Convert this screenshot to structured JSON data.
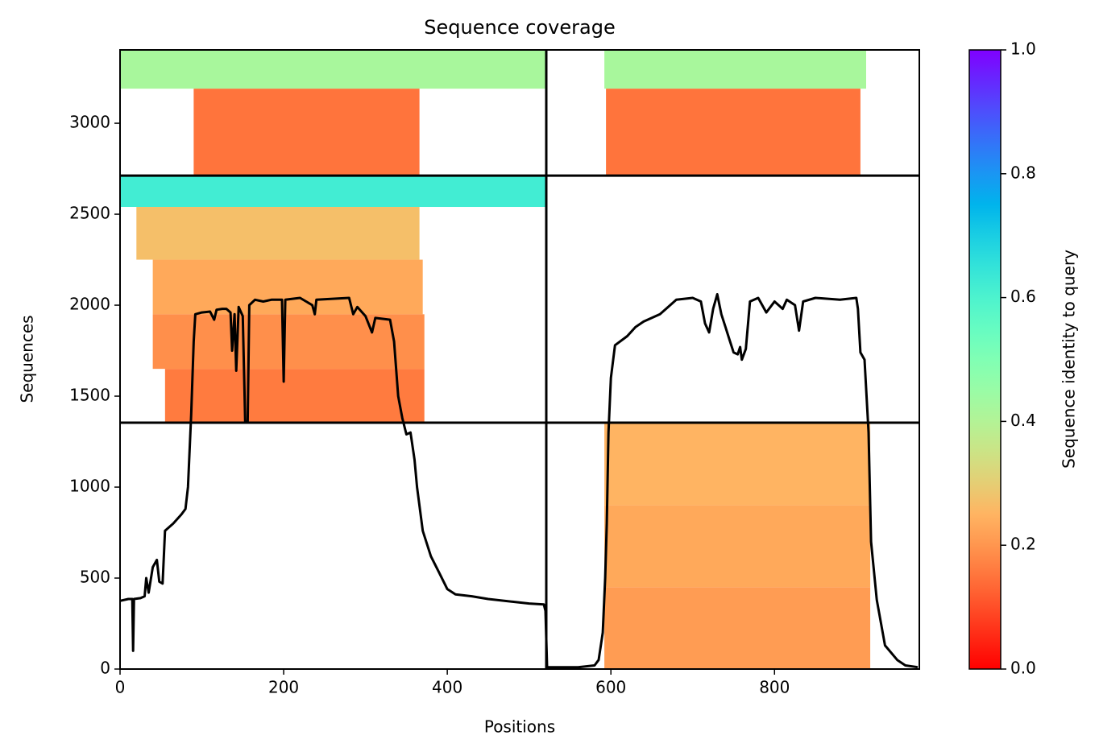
{
  "chart_data": {
    "type": "msa_coverage",
    "title": "Sequence coverage",
    "x_label": "Positions",
    "y_label": "Sequences",
    "xlim": [
      0,
      977
    ],
    "ylim": [
      0,
      3403
    ],
    "xticks": [
      0,
      200,
      400,
      600,
      800
    ],
    "yticks": [
      0,
      500,
      1000,
      1500,
      2000,
      2500,
      3000
    ],
    "colormap": "rainbow_r",
    "colorbar": {
      "label": "Sequence identity to query",
      "clim": [
        0,
        1
      ],
      "ticks": [
        {
          "value": 0,
          "label": "0.0"
        },
        {
          "value": 0.2,
          "label": "0.2"
        },
        {
          "value": 0.4,
          "label": "0.4"
        },
        {
          "value": 0.6,
          "label": "0.6"
        },
        {
          "value": 0.8,
          "label": "0.8"
        },
        {
          "value": 1,
          "label": "1.0"
        }
      ]
    },
    "chain_breaks_x": [
      521
    ],
    "segment_breaks_y": [
      1354,
      2712
    ],
    "blocks": [
      {
        "x0": 0,
        "x1": 521,
        "y0": 3190,
        "y1": 3403,
        "identity": 0.42
      },
      {
        "x0": 90,
        "x1": 366,
        "y0": 2712,
        "y1": 3190,
        "identity": 0.15
      },
      {
        "x0": 592,
        "x1": 912,
        "y0": 3190,
        "y1": 3403,
        "identity": 0.42
      },
      {
        "x0": 594,
        "x1": 905,
        "y0": 2712,
        "y1": 3190,
        "identity": 0.15
      },
      {
        "x0": 0,
        "x1": 521,
        "y0": 2540,
        "y1": 2712,
        "identity": 0.62
      },
      {
        "x0": 20,
        "x1": 366,
        "y0": 2250,
        "y1": 2540,
        "identity": 0.27
      },
      {
        "x0": 40,
        "x1": 370,
        "y0": 1950,
        "y1": 2250,
        "identity": 0.23
      },
      {
        "x0": 40,
        "x1": 372,
        "y0": 1650,
        "y1": 1950,
        "identity": 0.19
      },
      {
        "x0": 55,
        "x1": 372,
        "y0": 1354,
        "y1": 1650,
        "identity": 0.16
      },
      {
        "x0": 592,
        "x1": 917,
        "y0": 900,
        "y1": 1354,
        "identity": 0.25
      },
      {
        "x0": 592,
        "x1": 917,
        "y0": 450,
        "y1": 900,
        "identity": 0.23
      },
      {
        "x0": 592,
        "x1": 917,
        "y0": 0,
        "y1": 450,
        "identity": 0.21
      }
    ],
    "x": [
      0,
      10,
      15,
      16,
      17,
      25,
      30,
      32,
      35,
      40,
      45,
      48,
      52,
      55,
      65,
      75,
      80,
      83,
      85,
      87,
      90,
      92,
      100,
      110,
      115,
      118,
      125,
      130,
      135,
      137,
      140,
      142,
      145,
      150,
      153,
      156,
      158,
      165,
      175,
      185,
      198,
      200,
      202,
      220,
      235,
      238,
      240,
      280,
      285,
      290,
      300,
      308,
      312,
      330,
      335,
      340,
      345,
      350,
      355,
      360,
      363,
      370,
      380,
      390,
      400,
      410,
      430,
      450,
      480,
      500,
      518,
      520,
      522,
      540,
      560,
      580,
      585,
      590,
      593,
      595,
      597,
      600,
      605,
      620,
      630,
      640,
      660,
      680,
      700,
      710,
      715,
      720,
      725,
      730,
      735,
      740,
      745,
      750,
      755,
      758,
      760,
      765,
      770,
      780,
      790,
      800,
      810,
      815,
      825,
      830,
      835,
      850,
      880,
      900,
      902,
      905,
      910,
      915,
      918,
      925,
      935,
      950,
      960,
      975
    ],
    "values": [
      375,
      385,
      385,
      100,
      385,
      390,
      400,
      500,
      420,
      560,
      600,
      480,
      470,
      760,
      800,
      850,
      880,
      1000,
      1200,
      1400,
      1800,
      1950,
      1960,
      1965,
      1920,
      1975,
      1980,
      1980,
      1960,
      1750,
      1950,
      1640,
      1990,
      1940,
      1360,
      1360,
      2000,
      2030,
      2020,
      2030,
      2030,
      1580,
      2030,
      2040,
      2000,
      1950,
      2030,
      2040,
      1950,
      1990,
      1940,
      1850,
      1930,
      1920,
      1800,
      1500,
      1380,
      1290,
      1300,
      1150,
      1000,
      760,
      620,
      530,
      440,
      410,
      400,
      385,
      370,
      360,
      355,
      320,
      10,
      10,
      10,
      20,
      50,
      200,
      500,
      800,
      1300,
      1600,
      1780,
      1830,
      1880,
      1910,
      1950,
      2030,
      2040,
      2020,
      1900,
      1850,
      1980,
      2060,
      1950,
      1880,
      1810,
      1740,
      1730,
      1770,
      1700,
      1760,
      2020,
      2040,
      1960,
      2020,
      1980,
      2030,
      2000,
      1860,
      2020,
      2040,
      2030,
      2040,
      1980,
      1740,
      1700,
      1300,
      700,
      380,
      130,
      50,
      20,
      10
    ]
  }
}
